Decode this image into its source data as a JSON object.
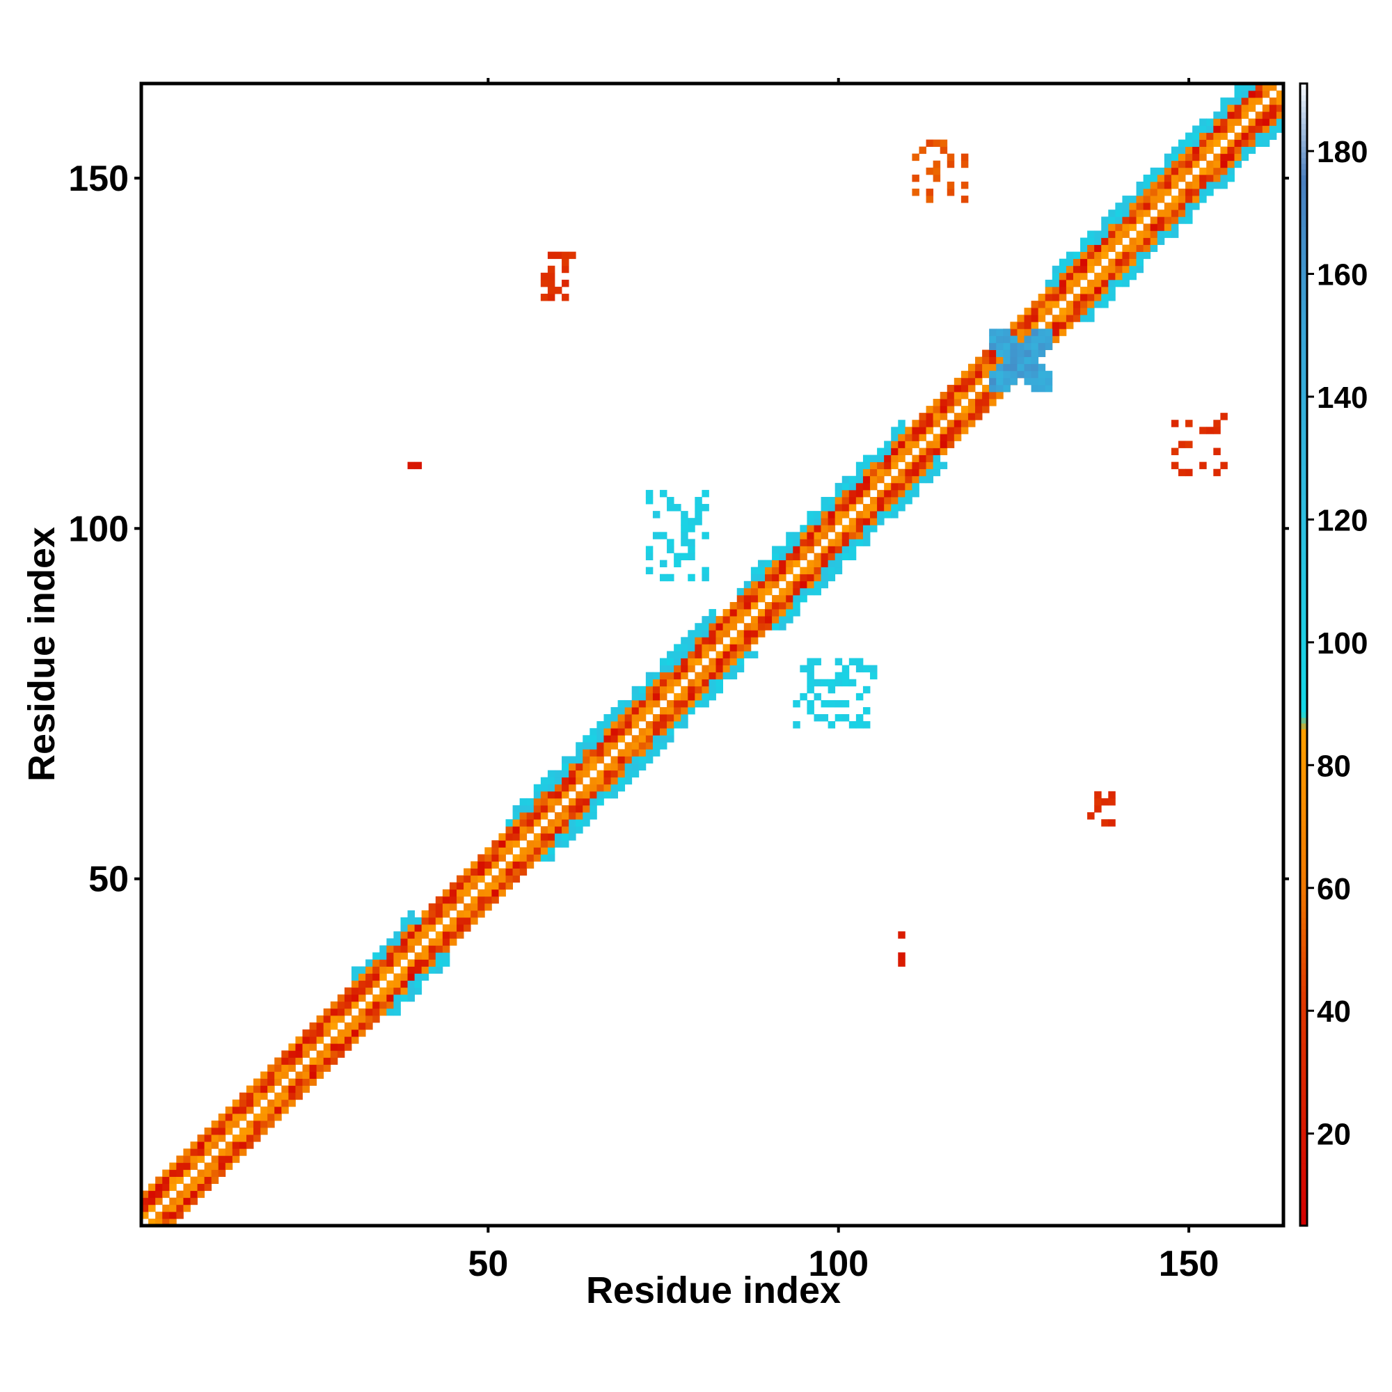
{
  "chart_data": {
    "type": "heatmap",
    "title": "",
    "xlabel": "Residue index",
    "ylabel": "Residue index",
    "xlim": [
      1,
      163
    ],
    "ylim": [
      1,
      163
    ],
    "xticks": [
      50,
      100,
      150
    ],
    "yticks": [
      50,
      100,
      150
    ],
    "colorbar": {
      "range": [
        5,
        191
      ],
      "ticks": [
        20,
        40,
        60,
        80,
        100,
        120,
        140,
        160,
        180
      ],
      "stops": [
        {
          "value": 5,
          "color": "#d40000"
        },
        {
          "value": 42,
          "color": "#e03a00"
        },
        {
          "value": 60,
          "color": "#f07800"
        },
        {
          "value": 85,
          "color": "#ff9f00"
        },
        {
          "value": 88,
          "color": "#13d8e6"
        },
        {
          "value": 118,
          "color": "#2ec0e0"
        },
        {
          "value": 150,
          "color": "#3aa6d8"
        },
        {
          "value": 175,
          "color": "#4a7fbf"
        },
        {
          "value": 191,
          "color": "#ffffff"
        }
      ]
    },
    "regions": [
      {
        "desc": "diagonal band",
        "values": "5-90 near diagonal (|i-j|<=4), 90-150 at |i-j| 4-6"
      },
      {
        "x": [
          122,
          130
        ],
        "y": [
          120,
          128
        ],
        "value": 150
      },
      {
        "x": [
          58,
          62
        ],
        "y": [
          133,
          139
        ],
        "value": 45
      },
      {
        "x": [
          111,
          118
        ],
        "y": [
          147,
          155
        ],
        "value": 60
      },
      {
        "x": [
          148,
          155
        ],
        "y": [
          108,
          116
        ],
        "value": 45
      },
      {
        "x": [
          135,
          140
        ],
        "y": [
          58,
          62
        ],
        "value": 45
      },
      {
        "x": [
          94,
          105
        ],
        "y": [
          72,
          81
        ],
        "value": 110
      },
      {
        "x": [
          73,
          81
        ],
        "y": [
          93,
          105
        ],
        "value": 110
      },
      {
        "x": [
          37,
          42
        ],
        "y": [
          109,
          109
        ],
        "value": 30
      },
      {
        "x": [
          109,
          109
        ],
        "y": [
          37,
          42
        ],
        "value": 30
      }
    ]
  }
}
